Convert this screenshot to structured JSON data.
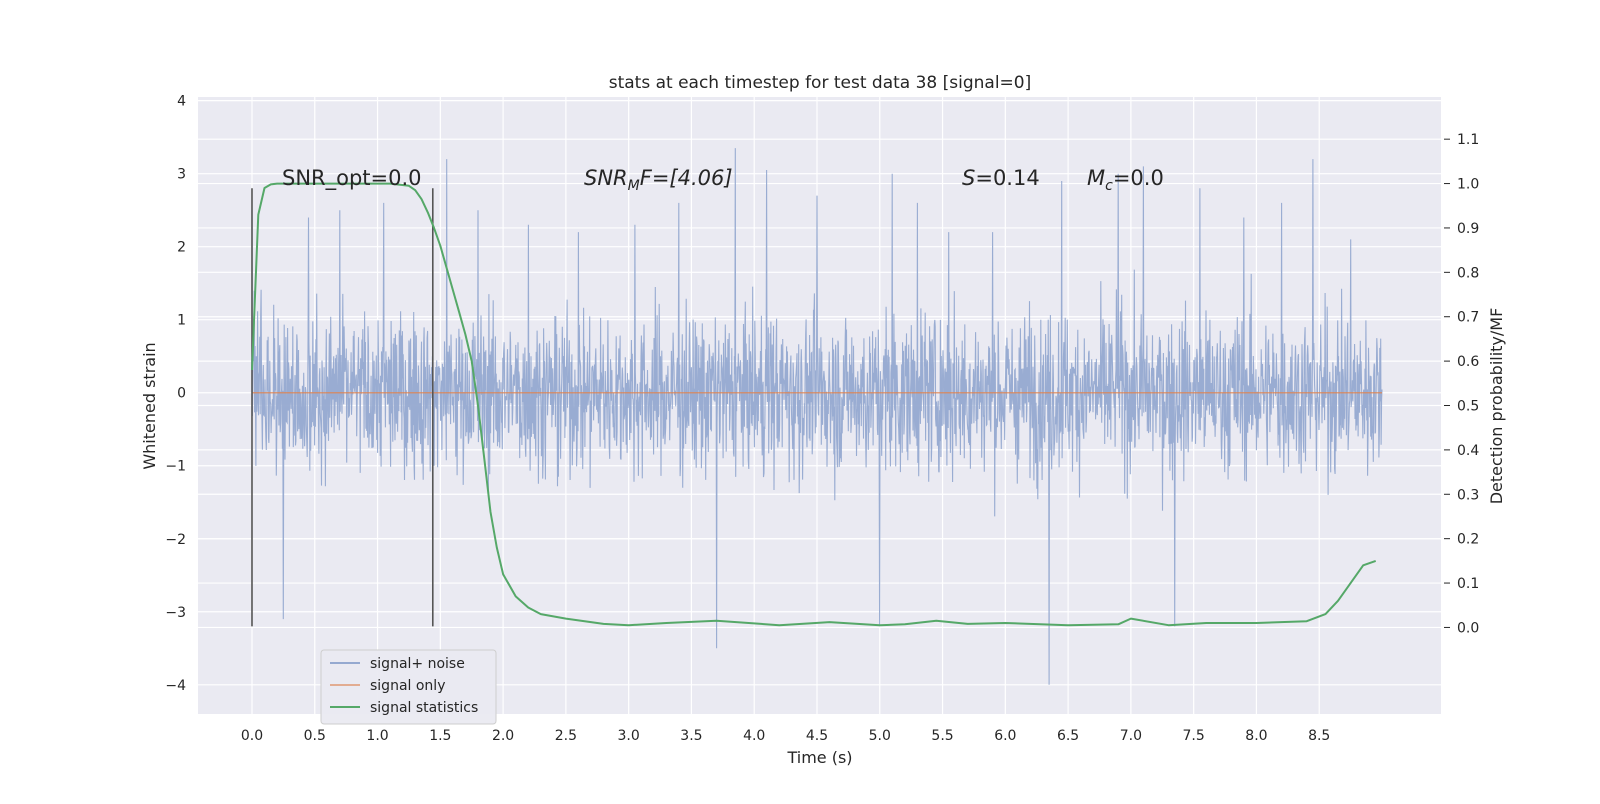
{
  "chart_data": {
    "type": "line",
    "title": "stats at each timestep for test data 38 [signal=0]",
    "xlabel": "Time (s)",
    "ylabel": "Whitened strain",
    "y2label": "Detection probability/MF",
    "xlim": [
      -0.43,
      9.47
    ],
    "ylim": [
      -4.4,
      4.05
    ],
    "y2lim": [
      -0.195,
      1.195
    ],
    "x_ticks": [
      "0.0",
      "0.5",
      "1.0",
      "1.5",
      "2.0",
      "2.5",
      "3.0",
      "3.5",
      "4.0",
      "4.5",
      "5.0",
      "5.5",
      "6.0",
      "6.5",
      "7.0",
      "7.5",
      "8.0",
      "8.5"
    ],
    "y_ticks": [
      "4",
      "3",
      "2",
      "1",
      "0",
      "−1",
      "−2",
      "−3",
      "−4"
    ],
    "y2_ticks": [
      "1.1",
      "1.0",
      "0.9",
      "0.8",
      "0.7",
      "0.6",
      "0.5",
      "0.4",
      "0.3",
      "0.2",
      "0.1",
      "0.0"
    ],
    "grid": true,
    "legend_position": "lower-left",
    "series": [
      {
        "name": "signal+ noise",
        "color": "#95a9d0",
        "axis": "left",
        "x_range": [
          0.0,
          9.0
        ],
        "envelope_note_values": {
          "typical_min": -1.5,
          "typical_max": 1.6
        },
        "peaks": [
          {
            "x": 0.0,
            "y": 2.5
          },
          {
            "x": 0.25,
            "y": -3.1
          },
          {
            "x": 0.45,
            "y": 2.4
          },
          {
            "x": 0.7,
            "y": 2.5
          },
          {
            "x": 1.05,
            "y": 2.6
          },
          {
            "x": 1.55,
            "y": 3.2
          },
          {
            "x": 1.8,
            "y": 2.5
          },
          {
            "x": 2.2,
            "y": 2.3
          },
          {
            "x": 2.6,
            "y": 2.2
          },
          {
            "x": 3.05,
            "y": 2.3
          },
          {
            "x": 3.4,
            "y": 2.6
          },
          {
            "x": 3.7,
            "y": -3.5
          },
          {
            "x": 3.85,
            "y": 3.35
          },
          {
            "x": 4.1,
            "y": 3.05
          },
          {
            "x": 4.5,
            "y": 2.7
          },
          {
            "x": 5.0,
            "y": -3.2
          },
          {
            "x": 5.1,
            "y": 3.0
          },
          {
            "x": 5.3,
            "y": 2.6
          },
          {
            "x": 5.55,
            "y": 2.2
          },
          {
            "x": 5.9,
            "y": 2.2
          },
          {
            "x": 6.35,
            "y": -4.0
          },
          {
            "x": 6.45,
            "y": 2.9
          },
          {
            "x": 6.9,
            "y": 3.0
          },
          {
            "x": 7.1,
            "y": 3.1
          },
          {
            "x": 7.35,
            "y": -3.2
          },
          {
            "x": 7.55,
            "y": 2.8
          },
          {
            "x": 7.9,
            "y": 2.4
          },
          {
            "x": 8.2,
            "y": 2.6
          },
          {
            "x": 8.45,
            "y": 3.2
          },
          {
            "x": 8.75,
            "y": 2.1
          }
        ]
      },
      {
        "name": "signal only",
        "color": "#dd8452",
        "axis": "left",
        "x": [
          0.0,
          9.0
        ],
        "y": [
          0.0,
          0.0
        ]
      },
      {
        "name": "signal statistics",
        "color": "#55a868",
        "axis": "right",
        "x": [
          0.0,
          0.05,
          0.1,
          0.15,
          0.2,
          0.3,
          0.5,
          0.8,
          1.1,
          1.25,
          1.3,
          1.35,
          1.4,
          1.45,
          1.5,
          1.55,
          1.6,
          1.65,
          1.7,
          1.75,
          1.8,
          1.85,
          1.9,
          1.95,
          2.0,
          2.1,
          2.2,
          2.3,
          2.5,
          2.8,
          3.0,
          3.3,
          3.7,
          4.2,
          4.6,
          5.0,
          5.2,
          5.45,
          5.7,
          6.0,
          6.5,
          6.9,
          7.0,
          7.3,
          7.6,
          8.0,
          8.4,
          8.55,
          8.65,
          8.75,
          8.85,
          8.95
        ],
        "y": [
          0.58,
          0.93,
          0.99,
          0.998,
          1.0,
          1.0,
          1.0,
          1.0,
          1.0,
          0.995,
          0.985,
          0.965,
          0.935,
          0.9,
          0.86,
          0.81,
          0.76,
          0.71,
          0.66,
          0.6,
          0.5,
          0.38,
          0.26,
          0.18,
          0.12,
          0.07,
          0.045,
          0.03,
          0.02,
          0.008,
          0.005,
          0.01,
          0.015,
          0.005,
          0.012,
          0.005,
          0.007,
          0.015,
          0.008,
          0.01,
          0.005,
          0.007,
          0.02,
          0.005,
          0.01,
          0.01,
          0.014,
          0.03,
          0.06,
          0.1,
          0.14,
          0.15
        ]
      }
    ],
    "vertical_lines": [
      0.0,
      1.44
    ],
    "annotations": {
      "snr_opt": "SNR_opt=0.0",
      "snr_mf_main": "SNR",
      "snr_mf_sub": "M",
      "snr_mf_tail": "F=[4.06]",
      "s_main": "S",
      "s_tail": "=0.14",
      "mc_main": "M",
      "mc_sub": "c",
      "mc_tail": "=0.0"
    }
  }
}
